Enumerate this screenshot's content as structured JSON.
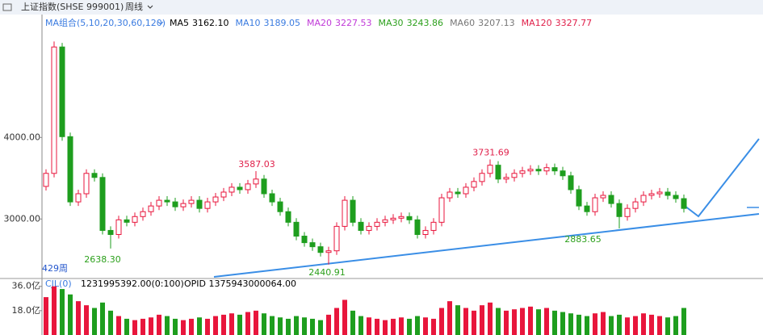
{
  "header": {
    "symbol": "上证指数(SHSE 999001)",
    "period": "周线"
  },
  "ma_legend": {
    "title": "MA组合(5,10,20,30,60,120)",
    "items": [
      {
        "name": "MA5",
        "value": 3162.1,
        "label": "3162.10",
        "color": "#000000"
      },
      {
        "name": "MA10",
        "value": 3189.05,
        "label": "3189.05",
        "color": "#3a7be0"
      },
      {
        "name": "MA20",
        "value": 3227.53,
        "label": "3227.53",
        "color": "#c03ad8"
      },
      {
        "name": "MA30",
        "value": 3243.86,
        "label": "3243.86",
        "color": "#2ca01c"
      },
      {
        "name": "MA60",
        "value": 3207.13,
        "label": "3207.13",
        "color": "#777777"
      },
      {
        "name": "MA120",
        "value": 3327.77,
        "label": "3327.77",
        "color": "#e0204a"
      }
    ]
  },
  "chart_data": {
    "type": "candlestick",
    "up_color": "#e8163c",
    "down_color": "#1e9e1e",
    "open": [
      3400,
      3560,
      5110,
      4010,
      3210,
      3310,
      3560,
      3510,
      2860,
      2810,
      2990,
      2960,
      3030,
      3090,
      3160,
      3230,
      3210,
      3150,
      3190,
      3230,
      3130,
      3210,
      3270,
      3330,
      3390,
      3360,
      3430,
      3490,
      3310,
      3210,
      3090,
      2960,
      2790,
      2710,
      2660,
      2590,
      2610,
      2910,
      3230,
      2960,
      2860,
      2910,
      2960,
      2990,
      3010,
      3030,
      2990,
      2810,
      2860,
      2960,
      3260,
      3330,
      3310,
      3390,
      3460,
      3560,
      3660,
      3490,
      3510,
      3560,
      3590,
      3610,
      3590,
      3630,
      3590,
      3530,
      3360,
      3160,
      3090,
      3260,
      3290,
      3190,
      3030,
      3130,
      3210,
      3290,
      3310,
      3330,
      3290,
      3250
    ],
    "high": [
      3610,
      5178,
      5160,
      4060,
      3360,
      3610,
      3610,
      3560,
      2910,
      3040,
      3040,
      3080,
      3140,
      3210,
      3280,
      3280,
      3260,
      3240,
      3280,
      3280,
      3260,
      3320,
      3380,
      3440,
      3440,
      3480,
      3587,
      3540,
      3360,
      3260,
      3140,
      3010,
      2840,
      2760,
      2710,
      2660,
      2960,
      3280,
      3280,
      3010,
      2960,
      3010,
      3040,
      3060,
      3080,
      3080,
      3040,
      2910,
      3010,
      3310,
      3380,
      3380,
      3440,
      3510,
      3610,
      3731,
      3710,
      3560,
      3610,
      3640,
      3660,
      3660,
      3680,
      3680,
      3640,
      3580,
      3410,
      3210,
      3310,
      3340,
      3340,
      3240,
      3180,
      3260,
      3340,
      3360,
      3380,
      3380,
      3340,
      3300
    ],
    "low": [
      3350,
      3510,
      3960,
      3160,
      3160,
      3260,
      3460,
      2810,
      2638,
      2760,
      2910,
      2910,
      2980,
      3040,
      3110,
      3160,
      3100,
      3100,
      3140,
      3080,
      3080,
      3160,
      3220,
      3280,
      3310,
      3310,
      3380,
      3260,
      3160,
      3040,
      2910,
      2740,
      2660,
      2610,
      2540,
      2441,
      2560,
      2860,
      2910,
      2810,
      2810,
      2860,
      2910,
      2940,
      2960,
      2940,
      2760,
      2760,
      2810,
      2910,
      3210,
      3260,
      3260,
      3340,
      3410,
      3510,
      3440,
      3440,
      3460,
      3510,
      3540,
      3540,
      3540,
      3540,
      3480,
      3310,
      3110,
      3040,
      3040,
      3210,
      3140,
      2884,
      2980,
      3080,
      3160,
      3240,
      3260,
      3240,
      3200,
      3080
    ],
    "close": [
      3560,
      5110,
      4010,
      3210,
      3310,
      3560,
      3510,
      2860,
      2810,
      2990,
      2960,
      3030,
      3090,
      3160,
      3230,
      3210,
      3150,
      3190,
      3230,
      3130,
      3210,
      3270,
      3330,
      3390,
      3360,
      3430,
      3490,
      3310,
      3210,
      3090,
      2960,
      2790,
      2710,
      2660,
      2590,
      2610,
      2910,
      3230,
      2960,
      2860,
      2910,
      2960,
      2990,
      3010,
      3030,
      2990,
      2810,
      2860,
      2960,
      3260,
      3330,
      3310,
      3390,
      3460,
      3560,
      3660,
      3490,
      3510,
      3560,
      3590,
      3610,
      3590,
      3630,
      3590,
      3530,
      3360,
      3160,
      3090,
      3260,
      3290,
      3190,
      3030,
      3130,
      3210,
      3290,
      3310,
      3330,
      3290,
      3250,
      3130
    ],
    "ylim": [
      2310,
      5310
    ],
    "yticks": [
      {
        "value": 3000,
        "label": "3000.00"
      },
      {
        "value": 4000,
        "label": "4000.00"
      }
    ],
    "annotations": [
      {
        "value": 3587.03,
        "label": "3587.03",
        "color": "#e0204a"
      },
      {
        "value": 3731.69,
        "label": "3731.69",
        "color": "#e0204a"
      },
      {
        "value": 2638.3,
        "label": "2638.30",
        "color": "#2ca01c"
      },
      {
        "value": 2440.91,
        "label": "2440.91",
        "color": "#2ca01c"
      },
      {
        "value": 2883.65,
        "label": "2883.65",
        "color": "#2ca01c"
      }
    ],
    "period_count": "429周"
  },
  "volume": {
    "title": "CJL(0)",
    "info": "1231995392.00(0:100)",
    "opid": "OPID 1375943000064.00",
    "values": [
      28,
      36,
      34,
      30,
      25,
      22,
      20,
      24,
      18,
      14,
      12,
      11,
      12,
      13,
      15,
      14,
      12,
      11,
      12,
      13,
      12,
      14,
      15,
      16,
      15,
      17,
      18,
      16,
      14,
      13,
      12,
      14,
      13,
      12,
      11,
      15,
      20,
      26,
      18,
      14,
      13,
      12,
      11,
      12,
      13,
      12,
      14,
      13,
      12,
      20,
      25,
      22,
      20,
      18,
      22,
      24,
      20,
      18,
      19,
      20,
      21,
      19,
      20,
      18,
      17,
      16,
      15,
      14,
      16,
      17,
      14,
      15,
      13,
      14,
      16,
      15,
      14,
      13,
      14,
      20
    ],
    "ylim": [
      0,
      40
    ],
    "yticks": [
      {
        "value": 36,
        "label": "36.0亿"
      },
      {
        "value": 18,
        "label": "18.0亿"
      }
    ]
  }
}
